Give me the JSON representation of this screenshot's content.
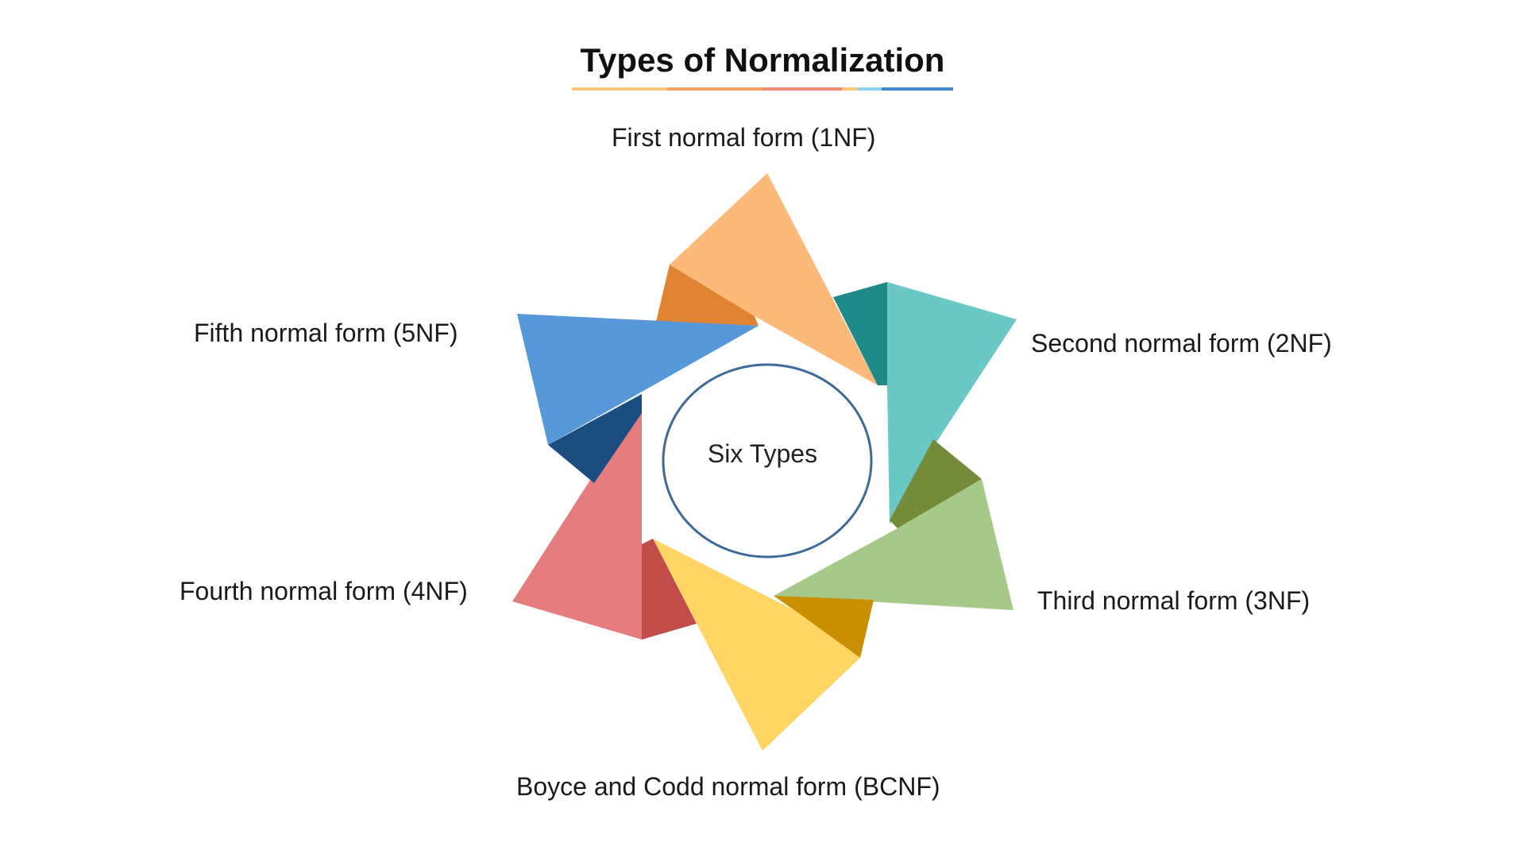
{
  "title": "Types of Normalization",
  "center_label": "Six Types",
  "types": [
    {
      "label": "First normal form (1NF)",
      "color": "#FBBA7A",
      "dark": "#E08433"
    },
    {
      "label": "Second normal form (2NF)",
      "color": "#6AC9C4",
      "dark": "#1F8A88"
    },
    {
      "label": "Third normal form (3NF)",
      "color": "#A6C98A",
      "dark": "#748C3A"
    },
    {
      "label": "Boyce and Codd normal form (BCNF)",
      "color": "#FFD563",
      "dark": "#C98F00"
    },
    {
      "label": "Fourth normal form (4NF)",
      "color": "#E57C7E",
      "dark": "#C14C4A"
    },
    {
      "label": "Fifth normal form (5NF)",
      "color": "#5698D8",
      "dark": "#1C4D80"
    }
  ],
  "underline_colors": [
    "#FBC877",
    "#F8A35E",
    "#F08A78",
    "#FBC877",
    "#8ED1F0",
    "#3E86C6"
  ]
}
